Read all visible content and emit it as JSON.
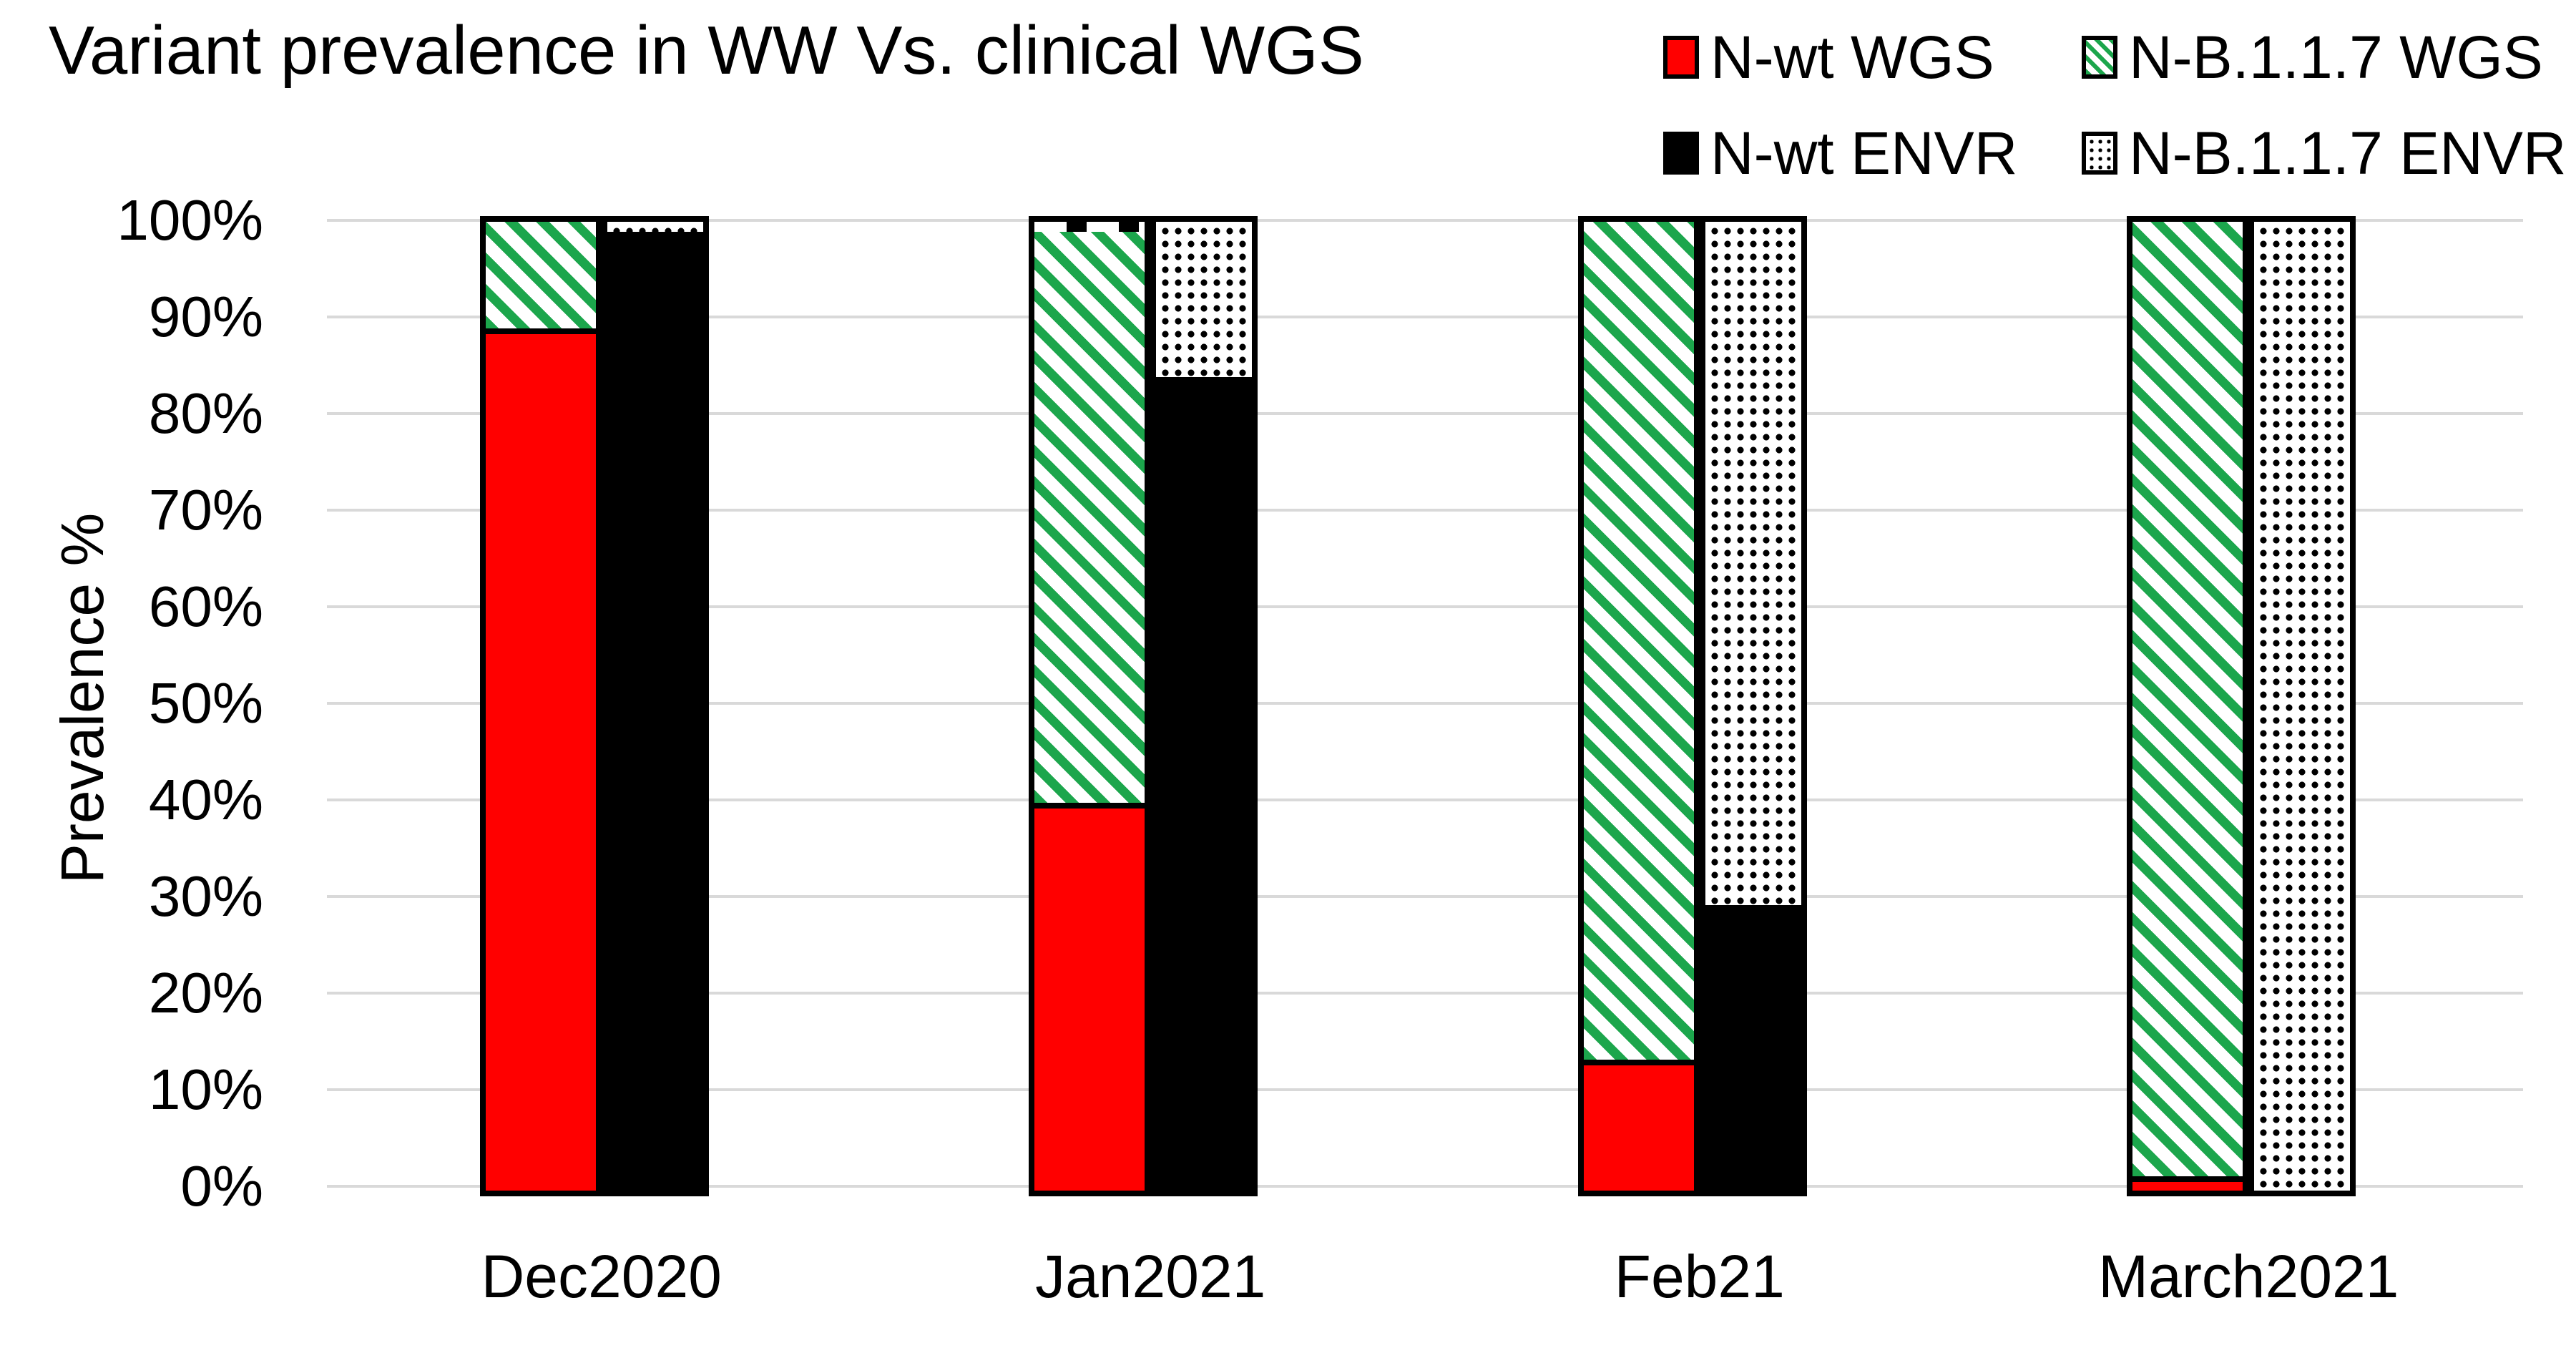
{
  "chart_data": {
    "type": "bar",
    "variant": "clustered-stacked",
    "title": "Variant prevalence in WW Vs. clinical WGS",
    "xlabel": "",
    "ylabel": "Prevalence %",
    "categories": [
      "Dec2020",
      "Jan2021",
      "Feb21",
      "March2021"
    ],
    "y_axis": {
      "min": 0,
      "max": 100,
      "step": 10,
      "tick_labels": [
        "0%",
        "10%",
        "20%",
        "30%",
        "40%",
        "50%",
        "60%",
        "70%",
        "80%",
        "90%",
        "100%"
      ],
      "grid": true,
      "grid_color": "#D9D9D9"
    },
    "bars_per_category": [
      "WGS",
      "ENVR"
    ],
    "series": [
      {
        "name": "N-wt WGS",
        "bar": "WGS",
        "style": "solid-red",
        "color": "#FF0000",
        "values": [
          89,
          40,
          13.5,
          1.5
        ]
      },
      {
        "name": "N-B.1.1.7 WGS",
        "bar": "WGS",
        "style": "green-diagonal-hatch",
        "color": "#1CA64C",
        "values": [
          11,
          59,
          86.5,
          98.5
        ]
      },
      {
        "name": "N-wt ENVR",
        "bar": "ENVR",
        "style": "solid-black",
        "color": "#000000",
        "values": [
          99,
          84,
          29.5,
          0
        ]
      },
      {
        "name": "N-B.1.1.7 ENVR",
        "bar": "ENVR",
        "style": "black-dots-on-white",
        "color": "#000000",
        "values": [
          1,
          16,
          70.5,
          100
        ]
      }
    ],
    "wgs_top_dash_cap_values": [
      0,
      1,
      0,
      0
    ],
    "legend": {
      "position": "top-right",
      "rows": [
        [
          {
            "label": "N-wt WGS",
            "swatch": "solid-red"
          },
          {
            "label": "N-B.1.1.7 WGS",
            "swatch": "green-hatch"
          }
        ],
        [
          {
            "label": "N-wt ENVR",
            "swatch": "solid-black"
          },
          {
            "label": "N-B.1.1.7 ENVR",
            "swatch": "white-dots"
          }
        ]
      ]
    },
    "colors": {
      "red": "#FF0000",
      "green": "#1CA64C",
      "black": "#000000",
      "grid": "#D9D9D9"
    }
  }
}
